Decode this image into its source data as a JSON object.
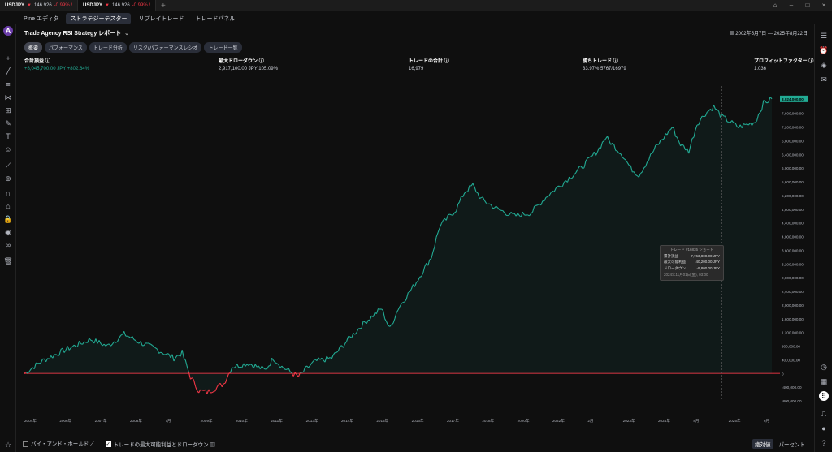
{
  "browser_tabs": [
    {
      "symbol": "USDJPY",
      "price": "146.926",
      "change": "-0.99% / ..."
    },
    {
      "symbol": "USDJPY",
      "price": "146.926",
      "change": "-0.99% / ..."
    }
  ],
  "top_tabs": [
    "Pine エディタ",
    "ストラテジーテスター",
    "リプレイトレード",
    "トレードパネル"
  ],
  "report_title": "Trade Agency RSI Strategy レポート",
  "date_range": "2002年5月7日 — 2025年8月22日",
  "sub_tabs": [
    "概要",
    "パフォーマンス",
    "トレード分析",
    "リスク/パフォーマンスレシオ",
    "トレード一覧"
  ],
  "metrics": [
    {
      "label": "合計損益",
      "value": "+8,045,700.00 JPY +802.64%"
    },
    {
      "label": "最大ドローダウン",
      "value": "2,917,100.00 JPY 105.09%"
    },
    {
      "label": "トレードの合計",
      "value": "16,979"
    },
    {
      "label": "勝ちトレード",
      "value": "33.97% 5767/16979"
    },
    {
      "label": "プロフィットファクター",
      "value": "1.036"
    }
  ],
  "chart_data": {
    "type": "area",
    "ylim": [
      -800000,
      8400000
    ],
    "yticks": [
      "8,000,000.00",
      "7,600,000.00",
      "7,200,000.00",
      "6,800,000.00",
      "6,400,000.00",
      "6,000,000.00",
      "5,600,000.00",
      "5,200,000.00",
      "4,800,000.00",
      "4,400,000.00",
      "4,000,000.00",
      "3,600,000.00",
      "3,200,000.00",
      "2,800,000.00",
      "2,400,000.00",
      "2,000,000.00",
      "1,600,000.00",
      "1,200,000.00",
      "800,000.00",
      "400,000.00",
      "0",
      "-400,000.00",
      "-800,000.00"
    ],
    "last_value_label": "8,024,000.00",
    "xticks": [
      "2004年",
      "2006年",
      "2007年",
      "2008年",
      "7月",
      "2009年",
      "2010年",
      "2011年",
      "2013年",
      "2014年",
      "2015年",
      "2016年",
      "2017年",
      "2018年",
      "2020年",
      "2022年",
      "2月",
      "2023年",
      "2024年",
      "8月",
      "2025年",
      "6月"
    ],
    "equity": [
      [
        0,
        0
      ],
      [
        2,
        350000
      ],
      [
        5,
        700000
      ],
      [
        8,
        1000000
      ],
      [
        10,
        800000
      ],
      [
        12,
        1150000
      ],
      [
        14,
        900000
      ],
      [
        16,
        700000
      ],
      [
        18,
        450000
      ],
      [
        19,
        600000
      ],
      [
        20,
        -100000
      ],
      [
        21,
        -500000
      ],
      [
        22,
        -550000
      ],
      [
        24,
        -300000
      ],
      [
        25,
        200000
      ],
      [
        27,
        300000
      ],
      [
        29,
        100000
      ],
      [
        30,
        450000
      ],
      [
        31,
        200000
      ],
      [
        33,
        -100000
      ],
      [
        34,
        150000
      ],
      [
        35,
        350000
      ],
      [
        37,
        450000
      ],
      [
        39,
        1000000
      ],
      [
        41,
        1500000
      ],
      [
        43,
        1900000
      ],
      [
        44,
        1300000
      ],
      [
        45,
        1900000
      ],
      [
        47,
        2600000
      ],
      [
        49,
        3400000
      ],
      [
        50,
        4300000
      ],
      [
        52,
        4800000
      ],
      [
        53,
        5300000
      ],
      [
        54,
        5500000
      ],
      [
        55,
        5100000
      ],
      [
        57,
        4800000
      ],
      [
        59,
        4600000
      ],
      [
        61,
        4700000
      ],
      [
        63,
        5200000
      ],
      [
        65,
        5600000
      ],
      [
        67,
        6000000
      ],
      [
        69,
        6500000
      ],
      [
        70,
        6900000
      ],
      [
        72,
        6400000
      ],
      [
        73,
        6000000
      ],
      [
        74,
        5800000
      ],
      [
        76,
        6600000
      ],
      [
        77,
        6900000
      ],
      [
        78,
        7200000
      ],
      [
        79,
        6700000
      ],
      [
        80,
        6500000
      ],
      [
        81,
        7300000
      ],
      [
        82,
        7600000
      ],
      [
        83,
        7800000
      ],
      [
        84,
        7500000
      ],
      [
        86,
        7200000
      ],
      [
        88,
        7350000
      ],
      [
        89,
        7900000
      ],
      [
        90,
        8024000
      ]
    ],
    "drawdown": [
      [
        0,
        -20000
      ],
      [
        20,
        -30000
      ],
      [
        24,
        -500000
      ],
      [
        26,
        -200000
      ],
      [
        28,
        -30000
      ],
      [
        90,
        -60000
      ]
    ]
  },
  "tooltip": {
    "title": "トレード #16835 ショート",
    "rows": [
      [
        "累計損益",
        "7,763,800.00 JPY"
      ],
      [
        "最大可能利益",
        "40,200.00 JPY"
      ],
      [
        "ドローダウン",
        "-9,800.00 JPY"
      ]
    ],
    "date": "2024年11月01日(金), 03:00"
  },
  "bottom_options": [
    {
      "label": "バイ・アンド・ホールド",
      "checked": false
    },
    {
      "label": "トレードの最大可能利益とドローダウン",
      "checked": true
    }
  ],
  "modes": [
    "絶対値",
    "パーセント"
  ],
  "colors": {
    "equity": "#22ab94",
    "drawdown_negative": "#f23645",
    "accent": "#2962ff"
  }
}
